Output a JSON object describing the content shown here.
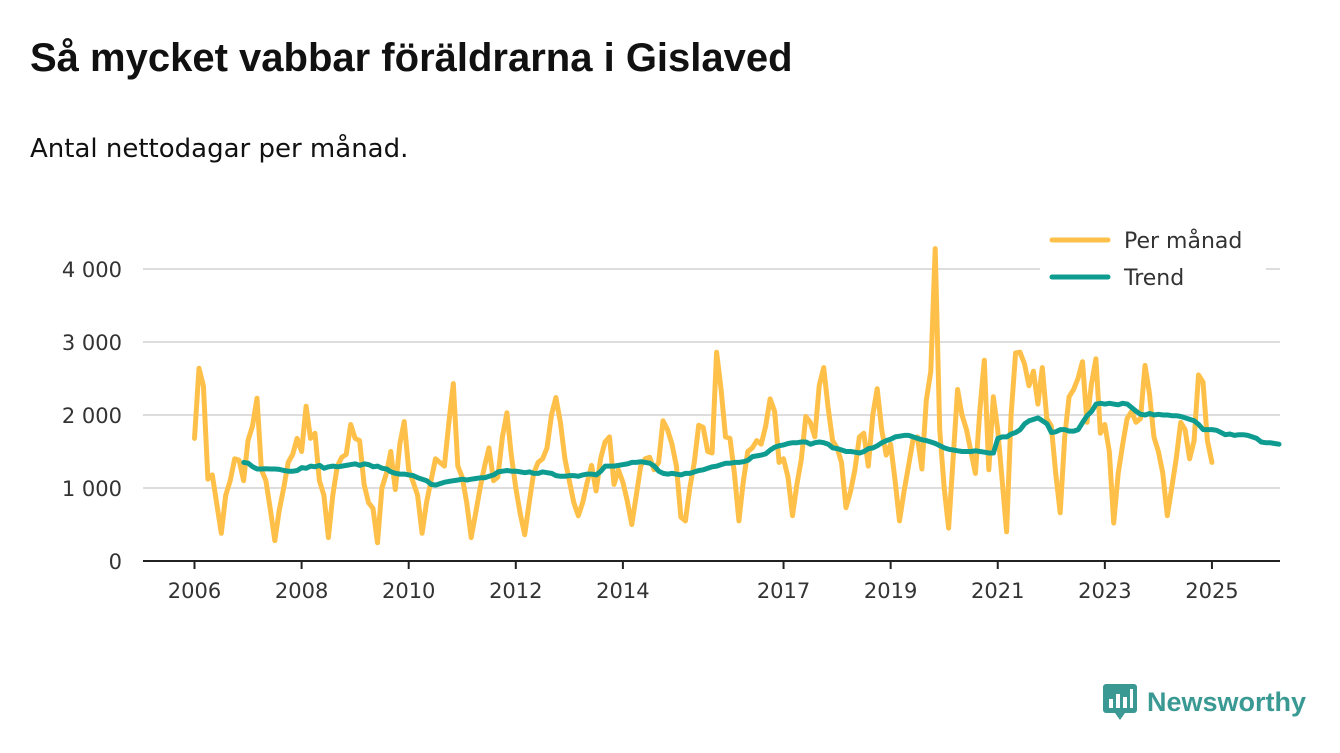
{
  "header": {
    "title": "Så mycket vabbar föräldrarna i Gislaved",
    "subtitle": "Antal nettodagar per månad."
  },
  "brand": {
    "name": "Newsworthy",
    "icon": "newsworthy-logo-icon"
  },
  "colors": {
    "monthly": "#ffc04a",
    "trend": "#0e9c90",
    "grid": "#dddddd",
    "axis": "#222222",
    "brand": "#3a9a93"
  },
  "chart_data": {
    "type": "line",
    "title": "Så mycket vabbar föräldrarna i Gislaved",
    "subtitle": "Antal nettodagar per månad.",
    "xlabel": "",
    "ylabel": "",
    "x_ticks": [
      2006,
      2008,
      2010,
      2012,
      2014,
      2017,
      2019,
      2021,
      2023,
      2025
    ],
    "x_tick_labels": [
      "2006",
      "2008",
      "2010",
      "2012",
      "2014",
      "2017",
      "2019",
      "2021",
      "2023",
      "2025"
    ],
    "y_ticks": [
      0,
      1000,
      2000,
      3000,
      4000
    ],
    "y_tick_labels": [
      "0",
      "1 000",
      "2 000",
      "3 000",
      "4 000"
    ],
    "xlim": [
      2005.0,
      2026.3
    ],
    "ylim": [
      0,
      4400
    ],
    "grid": true,
    "legend_position": "top-right",
    "series": [
      {
        "name": "Per månad",
        "x_start": 2006.0,
        "step": 0.08333,
        "values": [
          1680,
          2640,
          2400,
          1120,
          1180,
          780,
          380,
          900,
          1100,
          1400,
          1380,
          1100,
          1650,
          1850,
          2230,
          1250,
          1100,
          700,
          280,
          700,
          1000,
          1350,
          1460,
          1680,
          1500,
          2120,
          1680,
          1750,
          1100,
          900,
          320,
          900,
          1300,
          1420,
          1460,
          1870,
          1680,
          1650,
          1050,
          800,
          720,
          250,
          1000,
          1200,
          1500,
          980,
          1600,
          1910,
          1250,
          1080,
          900,
          380,
          800,
          1100,
          1400,
          1350,
          1300,
          1900,
          2430,
          1300,
          1150,
          800,
          320,
          650,
          1000,
          1300,
          1550,
          1100,
          1150,
          1700,
          2030,
          1450,
          1000,
          650,
          360,
          800,
          1200,
          1350,
          1400,
          1550,
          2000,
          2240,
          1900,
          1400,
          1100,
          800,
          620,
          800,
          1080,
          1310,
          960,
          1400,
          1630,
          1700,
          1050,
          1250,
          1080,
          820,
          500,
          900,
          1300,
          1400,
          1420,
          1250,
          1350,
          1920,
          1800,
          1600,
          1300,
          600,
          550,
          1000,
          1350,
          1860,
          1830,
          1500,
          1480,
          2860,
          2350,
          1700,
          1680,
          1200,
          550,
          1100,
          1500,
          1550,
          1650,
          1600,
          1850,
          2220,
          2050,
          1350,
          1400,
          1150,
          620,
          1050,
          1400,
          1980,
          1900,
          1700,
          2400,
          2650,
          2100,
          1650,
          1550,
          1350,
          730,
          950,
          1250,
          1700,
          1750,
          1300,
          2000,
          2360,
          1800,
          1450,
          1600,
          1100,
          550,
          950,
          1300,
          1650,
          1700,
          1260,
          2200,
          2600,
          4280,
          1800,
          1000,
          450,
          1400,
          2350,
          2000,
          1800,
          1500,
          1200,
          2070,
          2750,
          1250,
          2250,
          1800,
          1100,
          400,
          2000,
          2850,
          2860,
          2700,
          2400,
          2600,
          2150,
          2650,
          1950,
          1850,
          1200,
          660,
          1700,
          2250,
          2350,
          2500,
          2730,
          1900,
          2420,
          2770,
          1750,
          1870,
          1500,
          520,
          1200,
          1600,
          1950,
          2050,
          1900,
          1950,
          2680,
          2300,
          1700,
          1500,
          1200,
          620,
          1000,
          1400,
          1900,
          1800,
          1400,
          1650,
          2550,
          2450,
          1650,
          1350
        ]
      },
      {
        "name": "Trend",
        "x_start": 2006.92,
        "step": 0.08333,
        "values": [
          1350,
          1340,
          1290,
          1260,
          1260,
          1265,
          1260,
          1260,
          1255,
          1240,
          1230,
          1230,
          1240,
          1280,
          1270,
          1300,
          1290,
          1310,
          1270,
          1290,
          1300,
          1290,
          1300,
          1310,
          1320,
          1330,
          1310,
          1330,
          1320,
          1290,
          1300,
          1270,
          1260,
          1220,
          1200,
          1190,
          1190,
          1180,
          1170,
          1140,
          1120,
          1100,
          1050,
          1040,
          1060,
          1080,
          1090,
          1100,
          1110,
          1120,
          1110,
          1120,
          1130,
          1140,
          1140,
          1160,
          1180,
          1220,
          1230,
          1240,
          1230,
          1230,
          1220,
          1210,
          1220,
          1200,
          1200,
          1220,
          1210,
          1200,
          1170,
          1160,
          1160,
          1170,
          1170,
          1160,
          1180,
          1190,
          1190,
          1180,
          1230,
          1300,
          1300,
          1300,
          1310,
          1320,
          1330,
          1350,
          1350,
          1360,
          1350,
          1340,
          1300,
          1230,
          1200,
          1190,
          1200,
          1190,
          1180,
          1200,
          1200,
          1220,
          1240,
          1250,
          1270,
          1290,
          1300,
          1320,
          1340,
          1340,
          1350,
          1350,
          1360,
          1380,
          1430,
          1440,
          1450,
          1470,
          1520,
          1560,
          1580,
          1590,
          1610,
          1620,
          1620,
          1630,
          1630,
          1600,
          1620,
          1630,
          1620,
          1600,
          1550,
          1540,
          1520,
          1500,
          1500,
          1490,
          1480,
          1500,
          1540,
          1550,
          1580,
          1620,
          1650,
          1670,
          1700,
          1710,
          1720,
          1720,
          1700,
          1680,
          1660,
          1650,
          1630,
          1610,
          1580,
          1550,
          1530,
          1520,
          1510,
          1500,
          1500,
          1500,
          1510,
          1500,
          1490,
          1480,
          1480,
          1680,
          1700,
          1700,
          1740,
          1760,
          1800,
          1880,
          1920,
          1940,
          1960,
          1920,
          1880,
          1760,
          1770,
          1800,
          1800,
          1780,
          1780,
          1800,
          1900,
          1990,
          2050,
          2150,
          2160,
          2150,
          2160,
          2150,
          2140,
          2160,
          2150,
          2100,
          2050,
          2010,
          2000,
          2020,
          2000,
          2010,
          2000,
          2000,
          1990,
          1990,
          1980,
          1960,
          1940,
          1920,
          1870,
          1800,
          1800,
          1800,
          1790,
          1760,
          1730,
          1740,
          1720,
          1730,
          1730,
          1720,
          1700,
          1680,
          1630,
          1620,
          1620,
          1610,
          1600
        ]
      }
    ]
  }
}
